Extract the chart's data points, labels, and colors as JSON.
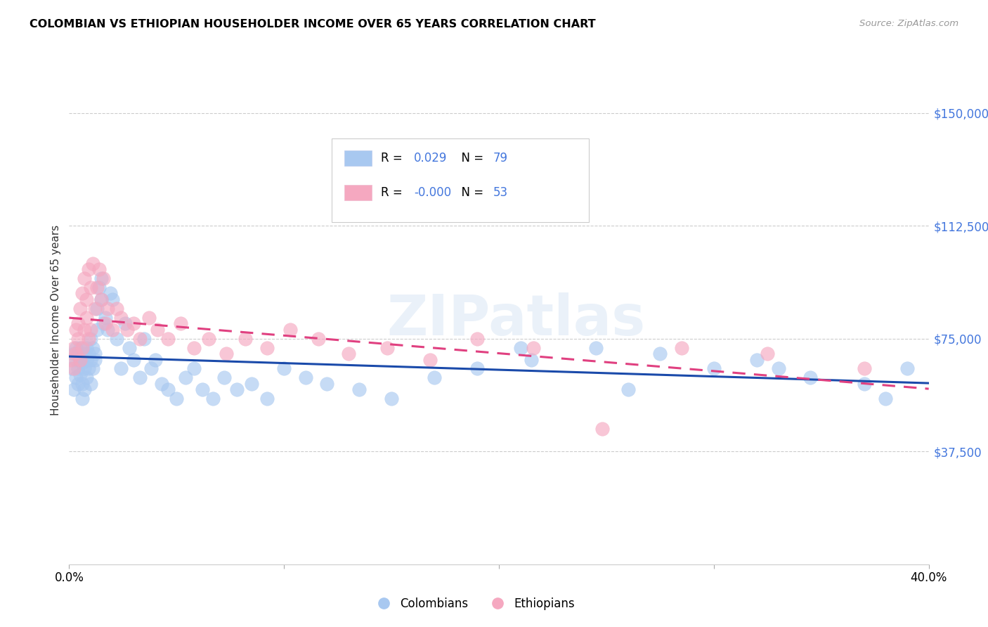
{
  "title": "COLOMBIAN VS ETHIOPIAN HOUSEHOLDER INCOME OVER 65 YEARS CORRELATION CHART",
  "source": "Source: ZipAtlas.com",
  "ylabel": "Householder Income Over 65 years",
  "ytick_labels": [
    "$37,500",
    "$75,000",
    "$112,500",
    "$150,000"
  ],
  "ytick_values": [
    37500,
    75000,
    112500,
    150000
  ],
  "ylim": [
    0,
    162500
  ],
  "xlim": [
    0.0,
    0.4
  ],
  "legend_blue_r": "0.029",
  "legend_blue_n": "79",
  "legend_pink_r": "-0.000",
  "legend_pink_n": "53",
  "blue_color": "#a8c8f0",
  "pink_color": "#f5a8c0",
  "blue_line_color": "#1a4aaa",
  "pink_line_color": "#e04080",
  "watermark": "ZIPatlas",
  "colombians_x": [
    0.001,
    0.002,
    0.002,
    0.003,
    0.003,
    0.003,
    0.004,
    0.004,
    0.004,
    0.005,
    0.005,
    0.005,
    0.006,
    0.006,
    0.006,
    0.007,
    0.007,
    0.007,
    0.008,
    0.008,
    0.008,
    0.009,
    0.009,
    0.01,
    0.01,
    0.01,
    0.011,
    0.011,
    0.012,
    0.012,
    0.013,
    0.013,
    0.014,
    0.015,
    0.015,
    0.016,
    0.017,
    0.018,
    0.019,
    0.02,
    0.022,
    0.024,
    0.026,
    0.028,
    0.03,
    0.033,
    0.035,
    0.038,
    0.04,
    0.043,
    0.046,
    0.05,
    0.054,
    0.058,
    0.062,
    0.067,
    0.072,
    0.078,
    0.085,
    0.092,
    0.1,
    0.11,
    0.12,
    0.135,
    0.15,
    0.17,
    0.19,
    0.215,
    0.245,
    0.275,
    0.3,
    0.32,
    0.345,
    0.37,
    0.39,
    0.21,
    0.26,
    0.33,
    0.38
  ],
  "colombians_y": [
    65000,
    70000,
    58000,
    68000,
    72000,
    62000,
    65000,
    70000,
    60000,
    68000,
    63000,
    72000,
    60000,
    67000,
    55000,
    70000,
    58000,
    65000,
    68000,
    62000,
    72000,
    65000,
    70000,
    68000,
    75000,
    60000,
    72000,
    65000,
    68000,
    70000,
    85000,
    78000,
    92000,
    95000,
    88000,
    80000,
    82000,
    78000,
    90000,
    88000,
    75000,
    65000,
    80000,
    72000,
    68000,
    62000,
    75000,
    65000,
    68000,
    60000,
    58000,
    55000,
    62000,
    65000,
    58000,
    55000,
    62000,
    58000,
    60000,
    55000,
    65000,
    62000,
    60000,
    58000,
    55000,
    62000,
    65000,
    68000,
    72000,
    70000,
    65000,
    68000,
    62000,
    60000,
    65000,
    72000,
    58000,
    65000,
    55000
  ],
  "ethiopians_x": [
    0.001,
    0.002,
    0.002,
    0.003,
    0.003,
    0.004,
    0.004,
    0.005,
    0.005,
    0.006,
    0.006,
    0.007,
    0.007,
    0.008,
    0.008,
    0.009,
    0.009,
    0.01,
    0.01,
    0.011,
    0.012,
    0.013,
    0.014,
    0.015,
    0.016,
    0.017,
    0.018,
    0.02,
    0.022,
    0.024,
    0.027,
    0.03,
    0.033,
    0.037,
    0.041,
    0.046,
    0.052,
    0.058,
    0.065,
    0.073,
    0.082,
    0.092,
    0.103,
    0.116,
    0.13,
    0.148,
    0.168,
    0.19,
    0.216,
    0.248,
    0.285,
    0.325,
    0.37
  ],
  "ethiopians_y": [
    68000,
    72000,
    65000,
    78000,
    70000,
    75000,
    80000,
    68000,
    85000,
    72000,
    90000,
    78000,
    95000,
    82000,
    88000,
    75000,
    98000,
    92000,
    78000,
    100000,
    85000,
    92000,
    98000,
    88000,
    95000,
    80000,
    85000,
    78000,
    85000,
    82000,
    78000,
    80000,
    75000,
    82000,
    78000,
    75000,
    80000,
    72000,
    75000,
    70000,
    75000,
    72000,
    78000,
    75000,
    70000,
    72000,
    68000,
    75000,
    72000,
    45000,
    72000,
    70000,
    65000
  ]
}
